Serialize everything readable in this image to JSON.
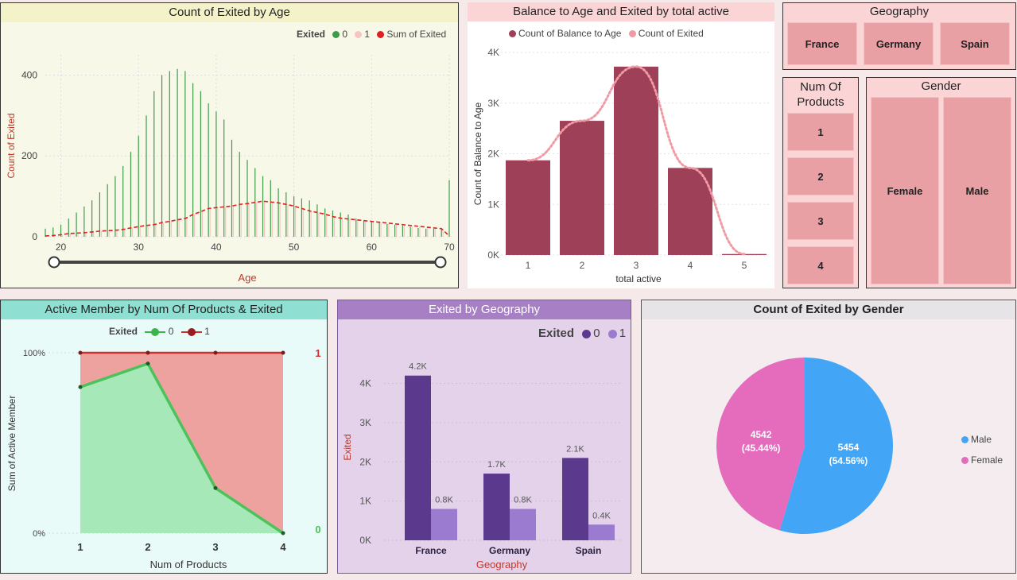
{
  "panels": {
    "age": {
      "title": "Count of Exited by Age"
    },
    "balance": {
      "title": "Balance to Age and Exited by total active"
    },
    "active": {
      "title": "Active Member by Num Of Products & Exited"
    },
    "geo": {
      "title": "Exited by Geography"
    },
    "gender": {
      "title": "Count of Exited by Gender"
    }
  },
  "slicers": {
    "geography": {
      "title": "Geography",
      "items": [
        "France",
        "Germany",
        "Spain"
      ]
    },
    "products": {
      "title": "Num Of Products",
      "items": [
        "1",
        "2",
        "3",
        "4"
      ]
    },
    "gender": {
      "title": "Gender",
      "items": [
        "Female",
        "Male"
      ]
    }
  },
  "colors": {
    "green": "#3f9b4a",
    "red": "#e02020",
    "pink": "#f5c4c4",
    "maroon": "#9e4057",
    "lightpink": "#ef9aa4",
    "purple": "#5b3a8e",
    "lilac": "#9b7bd0",
    "male": "#42a5f5",
    "female": "#e56bbd"
  },
  "chart_data": [
    {
      "id": "age",
      "type": "bar",
      "title": "Count of Exited by Age",
      "xlabel": "Age",
      "ylabel": "Count of Exited",
      "legend_title": "Exited",
      "legend": [
        "0",
        "1",
        "Sum of Exited"
      ],
      "xlim": [
        18,
        70
      ],
      "ylim": [
        0,
        450
      ],
      "xticks": [
        20,
        30,
        40,
        50,
        60,
        70
      ],
      "yticks": [
        0,
        200,
        400
      ],
      "slider_range": [
        18,
        70
      ],
      "x": [
        18,
        19,
        20,
        21,
        22,
        23,
        24,
        25,
        26,
        27,
        28,
        29,
        30,
        31,
        32,
        33,
        34,
        35,
        36,
        37,
        38,
        39,
        40,
        41,
        42,
        43,
        44,
        45,
        46,
        47,
        48,
        49,
        50,
        51,
        52,
        53,
        54,
        55,
        56,
        57,
        58,
        59,
        60,
        61,
        62,
        63,
        64,
        65,
        66,
        67,
        68,
        69,
        70
      ],
      "series": [
        {
          "name": "0",
          "values": [
            20,
            23,
            30,
            45,
            60,
            75,
            90,
            110,
            130,
            150,
            175,
            210,
            250,
            300,
            360,
            400,
            410,
            415,
            410,
            380,
            360,
            330,
            310,
            290,
            240,
            210,
            190,
            170,
            150,
            140,
            120,
            110,
            100,
            95,
            90,
            80,
            70,
            65,
            60,
            55,
            45,
            40,
            38,
            35,
            32,
            30,
            28,
            25,
            22,
            20,
            20,
            18,
            140
          ]
        },
        {
          "name": "1",
          "values": [
            2,
            3,
            5,
            8,
            9,
            10,
            12,
            14,
            15,
            16,
            18,
            22,
            25,
            28,
            30,
            35,
            38,
            42,
            45,
            55,
            62,
            70,
            72,
            74,
            76,
            80,
            82,
            85,
            88,
            86,
            84,
            80,
            76,
            70,
            64,
            60,
            56,
            50,
            46,
            44,
            42,
            40,
            38,
            36,
            34,
            32,
            30,
            28,
            26,
            24,
            22,
            20,
            2
          ]
        },
        {
          "name": "Sum of Exited",
          "values": [
            2,
            3,
            5,
            8,
            9,
            10,
            12,
            14,
            15,
            16,
            18,
            22,
            25,
            28,
            30,
            35,
            38,
            42,
            45,
            55,
            62,
            70,
            72,
            74,
            76,
            80,
            82,
            85,
            88,
            86,
            84,
            80,
            76,
            70,
            64,
            60,
            56,
            50,
            46,
            44,
            42,
            40,
            38,
            36,
            34,
            32,
            30,
            28,
            26,
            24,
            22,
            20,
            2
          ]
        }
      ]
    },
    {
      "id": "balance",
      "type": "bar",
      "title": "Balance to Age and Exited by total active",
      "xlabel": "total active",
      "ylabel": "Count of Balance to Age",
      "legend": [
        "Count of Balance to Age",
        "Count of Exited"
      ],
      "categories": [
        "1",
        "2",
        "3",
        "4",
        "5"
      ],
      "yticks": [
        "0K",
        "1K",
        "2K",
        "3K",
        "4K"
      ],
      "ylim": [
        0,
        4000
      ],
      "series": [
        {
          "name": "Count of Balance to Age",
          "values": [
            1870,
            2650,
            3720,
            1720,
            20
          ]
        },
        {
          "name": "Count of Exited",
          "values": [
            1870,
            2650,
            3720,
            1720,
            20
          ]
        }
      ]
    },
    {
      "id": "active",
      "type": "area",
      "title": "Active Member by Num Of Products & Exited",
      "xlabel": "Num of Products",
      "ylabel": "Sum of Active Member",
      "legend_title": "Exited",
      "legend": [
        "0",
        "1"
      ],
      "categories": [
        "1",
        "2",
        "3",
        "4"
      ],
      "yticks": [
        "0%",
        "100%"
      ],
      "ylim": [
        0,
        100
      ],
      "end_labels": [
        "1",
        "0"
      ],
      "series": [
        {
          "name": "0",
          "values": [
            81,
            94,
            25,
            0
          ]
        },
        {
          "name": "1",
          "values": [
            100,
            100,
            100,
            100
          ]
        }
      ]
    },
    {
      "id": "geo",
      "type": "bar",
      "title": "Exited by Geography",
      "xlabel": "Geography",
      "ylabel": "Exited",
      "legend_title": "Exited",
      "legend": [
        "0",
        "1"
      ],
      "categories": [
        "France",
        "Germany",
        "Spain"
      ],
      "yticks": [
        "0K",
        "1K",
        "2K",
        "3K",
        "4K"
      ],
      "ylim": [
        0,
        4600
      ],
      "series": [
        {
          "name": "0",
          "values": [
            4200,
            1700,
            2100
          ],
          "labels": [
            "4.2K",
            "1.7K",
            "2.1K"
          ]
        },
        {
          "name": "1",
          "values": [
            800,
            800,
            400
          ],
          "labels": [
            "0.8K",
            "0.8K",
            "0.4K"
          ]
        }
      ]
    },
    {
      "id": "gender",
      "type": "pie",
      "title": "Count of Exited by Gender",
      "slices": [
        {
          "name": "Male",
          "value": 5454,
          "label": "5454",
          "pct": "(54.56%)"
        },
        {
          "name": "Female",
          "value": 4542,
          "label": "4542",
          "pct": "(45.44%)"
        }
      ]
    }
  ]
}
